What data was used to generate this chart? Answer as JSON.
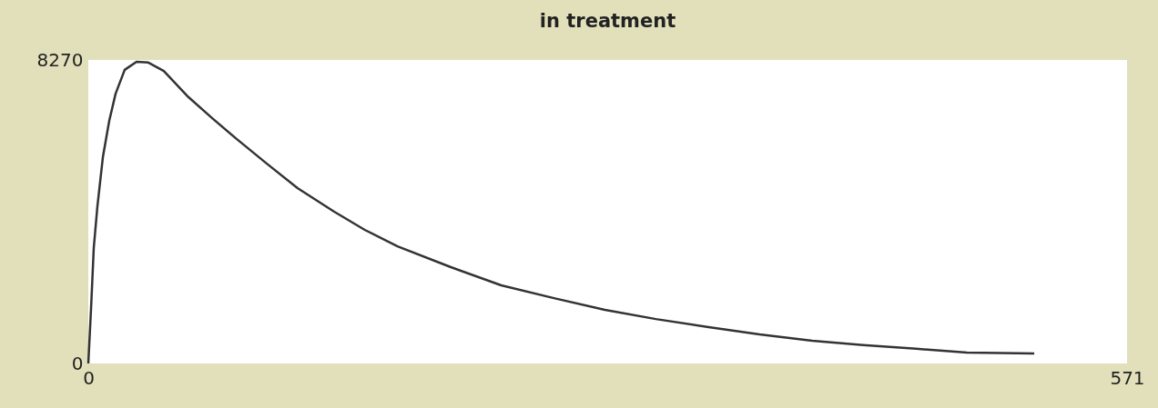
{
  "chart_data": {
    "type": "line",
    "title": "in treatment",
    "x": [
      0,
      1.5,
      3,
      5,
      8,
      11.5,
      15,
      20,
      26.5,
      33,
      41.5,
      55,
      68,
      81.5,
      98,
      115,
      135,
      152,
      170,
      199,
      227,
      256,
      284,
      312,
      341,
      369,
      398,
      426,
      455,
      483,
      520
    ],
    "values": [
      0,
      1490,
      3150,
      4280,
      5620,
      6610,
      7350,
      8000,
      8220,
      8200,
      7970,
      7260,
      6690,
      6120,
      5450,
      4780,
      4140,
      3640,
      3190,
      2630,
      2130,
      1780,
      1460,
      1210,
      990,
      790,
      620,
      500,
      400,
      300,
      270
    ],
    "color": "#333333",
    "xlim": [
      0,
      571
    ],
    "xticks": [
      0,
      571
    ],
    "ylim": [
      0,
      8270
    ],
    "yticks": [
      0,
      8270
    ]
  }
}
